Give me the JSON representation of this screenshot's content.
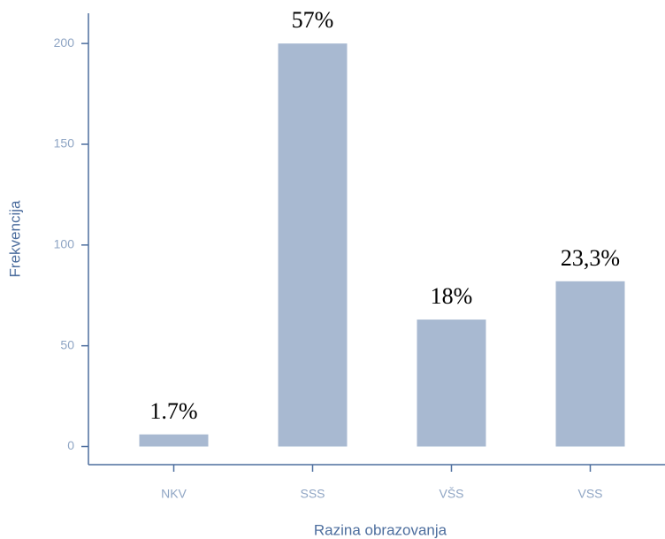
{
  "chart_data": {
    "type": "bar",
    "x_label": "Razina obrazovanja",
    "y_label": "Frekvencija",
    "categories": [
      "NKV",
      "SSS",
      "VŠS",
      "VSS"
    ],
    "values": [
      6,
      200,
      63,
      82
    ],
    "percentages": [
      1.7,
      57,
      18,
      23.3
    ],
    "percentage_labels": [
      "1.7%",
      "57%",
      "18%",
      "23,3%"
    ],
    "color": "#a8b9d1",
    "ylim": [
      -9,
      215
    ],
    "yticks": [
      0,
      50,
      100,
      150,
      200
    ],
    "grid": false
  }
}
